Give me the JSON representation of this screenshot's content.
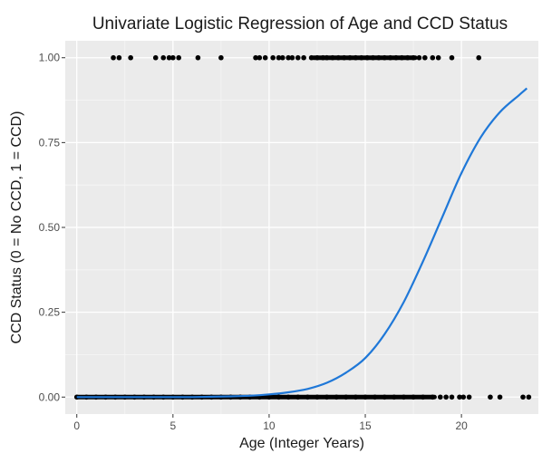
{
  "chart_data": {
    "type": "scatter",
    "title": "Univariate Logistic Regression of Age and CCD Status",
    "xlabel": "Age (Integer Years)",
    "ylabel": "CCD Status (0 = No CCD, 1 = CCD)",
    "xlim": [
      -0.6,
      24
    ],
    "ylim": [
      -0.05,
      1.05
    ],
    "xticks": [
      0,
      5,
      10,
      15,
      20
    ],
    "xtick_labels": [
      "0",
      "5",
      "10",
      "15",
      "20"
    ],
    "yticks": [
      0,
      0.25,
      0.5,
      0.75,
      1.0
    ],
    "ytick_labels": [
      "0.00",
      "0.25",
      "0.50",
      "0.75",
      "1.00"
    ],
    "grid": true,
    "background": "#ebebeb",
    "colors": {
      "points": "#000000",
      "curve": "#1f78d8",
      "panel": "#ebebeb",
      "grid": "#ffffff"
    },
    "series": [
      {
        "type": "scatter",
        "y": 1,
        "x": [
          1.9,
          2.2,
          2.8,
          4.1,
          4.5,
          4.8,
          5.0,
          5.3,
          6.3,
          7.5,
          9.3,
          9.5,
          9.8,
          10.2,
          10.5,
          10.7,
          11.0,
          11.2,
          11.5,
          11.8,
          12.2,
          12.5,
          12.8,
          13.0,
          13.3,
          13.6,
          13.9,
          14.2,
          14.5,
          14.8,
          15.1,
          15.4,
          15.7,
          16.0,
          16.3,
          16.6,
          16.9,
          17.2,
          17.5,
          17.8,
          18.1,
          18.5,
          18.8,
          19.5,
          20.9
        ]
      },
      {
        "type": "scatter",
        "y": 0,
        "x": [
          0.0,
          0.5,
          1.0,
          1.5,
          2.0,
          2.5,
          3.0,
          3.5,
          4.0,
          4.5,
          5.0,
          5.5,
          6.0,
          6.5,
          7.0,
          7.5,
          8.0,
          8.5,
          9.0,
          9.5,
          10.0,
          10.5,
          11.0,
          11.5,
          12.0,
          12.5,
          13.0,
          13.5,
          14.0,
          14.5,
          15.0,
          15.5,
          16.0,
          16.5,
          17.0,
          17.5,
          18.0,
          18.5,
          18.9,
          19.2,
          19.5,
          19.9,
          20.1,
          20.4,
          21.5,
          22.0,
          23.2,
          23.5
        ]
      },
      {
        "type": "line",
        "x": [
          0,
          2,
          4,
          6,
          7,
          8,
          9,
          10,
          11,
          12,
          13,
          14,
          15,
          16,
          17,
          18,
          19,
          20,
          21,
          22,
          23,
          23.4
        ],
        "y": [
          0.0,
          0.0,
          0.0,
          0.0,
          0.001,
          0.002,
          0.004,
          0.008,
          0.014,
          0.024,
          0.042,
          0.072,
          0.115,
          0.185,
          0.28,
          0.4,
          0.53,
          0.66,
          0.765,
          0.84,
          0.89,
          0.91
        ]
      }
    ]
  }
}
